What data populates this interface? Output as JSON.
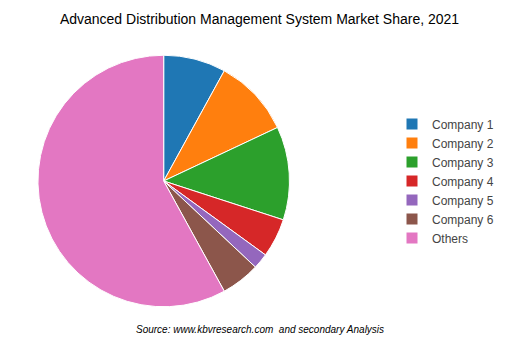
{
  "chart_data": {
    "type": "pie",
    "title": "Advanced Distribution Management System Market Share, 2021",
    "categories": [
      "Company 1",
      "Company 2",
      "Company 3",
      "Company 4",
      "Company 5",
      "Company 6",
      "Others"
    ],
    "values": [
      8,
      10,
      12,
      5,
      2,
      5,
      58
    ],
    "annotations": [
      "Source: www.kbvresearch.com  and secondary Analysis"
    ],
    "legend": "right"
  }
}
